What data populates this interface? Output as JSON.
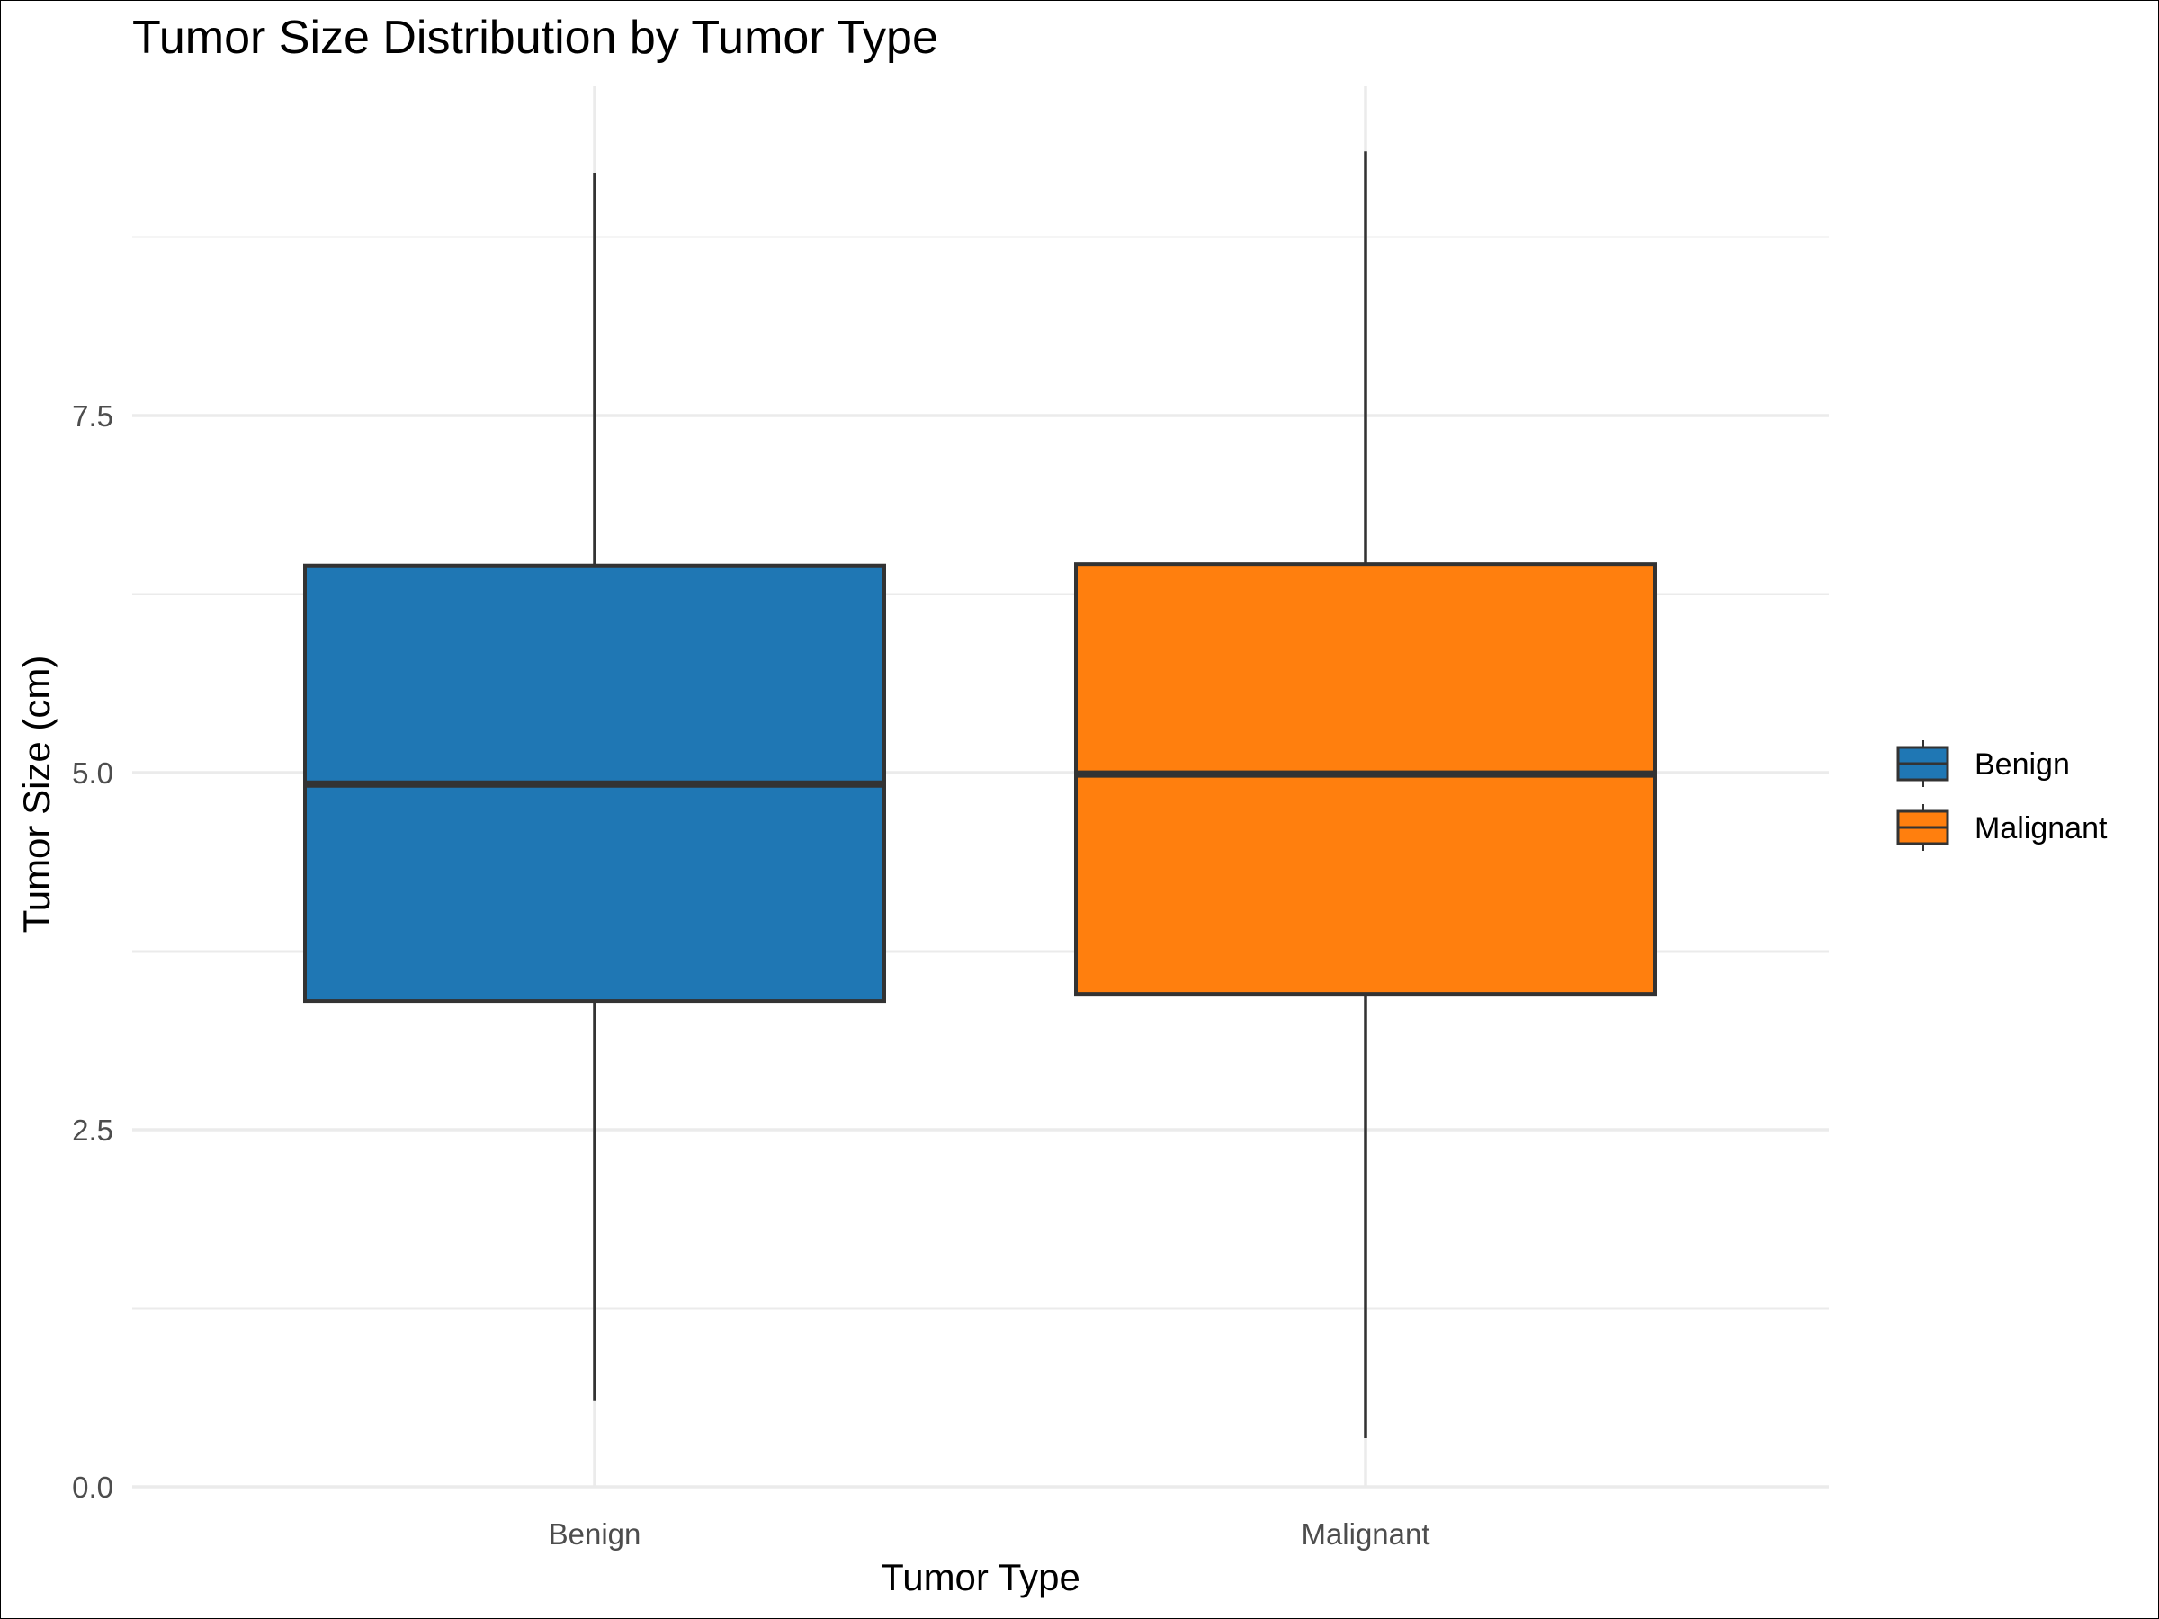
{
  "chart_data": {
    "type": "box",
    "title": "Tumor Size Distribution by Tumor Type",
    "xlabel": "Tumor Type",
    "ylabel": "Tumor Size (cm)",
    "ylim": [
      0,
      9.5
    ],
    "yticks": [
      0.0,
      2.5,
      5.0,
      7.5
    ],
    "ytick_labels": [
      "0.0",
      "2.5",
      "5.0",
      "7.5"
    ],
    "grid": true,
    "legend_position": "right",
    "categories": [
      "Benign",
      "Malignant"
    ],
    "series": [
      {
        "name": "Benign",
        "color": "#1f77b4",
        "min": 0.6,
        "q1": 3.4,
        "median": 4.92,
        "q3": 6.45,
        "max": 9.2
      },
      {
        "name": "Malignant",
        "color": "#ff7f0e",
        "min": 0.34,
        "q1": 3.45,
        "median": 4.99,
        "q3": 6.46,
        "max": 9.35
      }
    ]
  }
}
